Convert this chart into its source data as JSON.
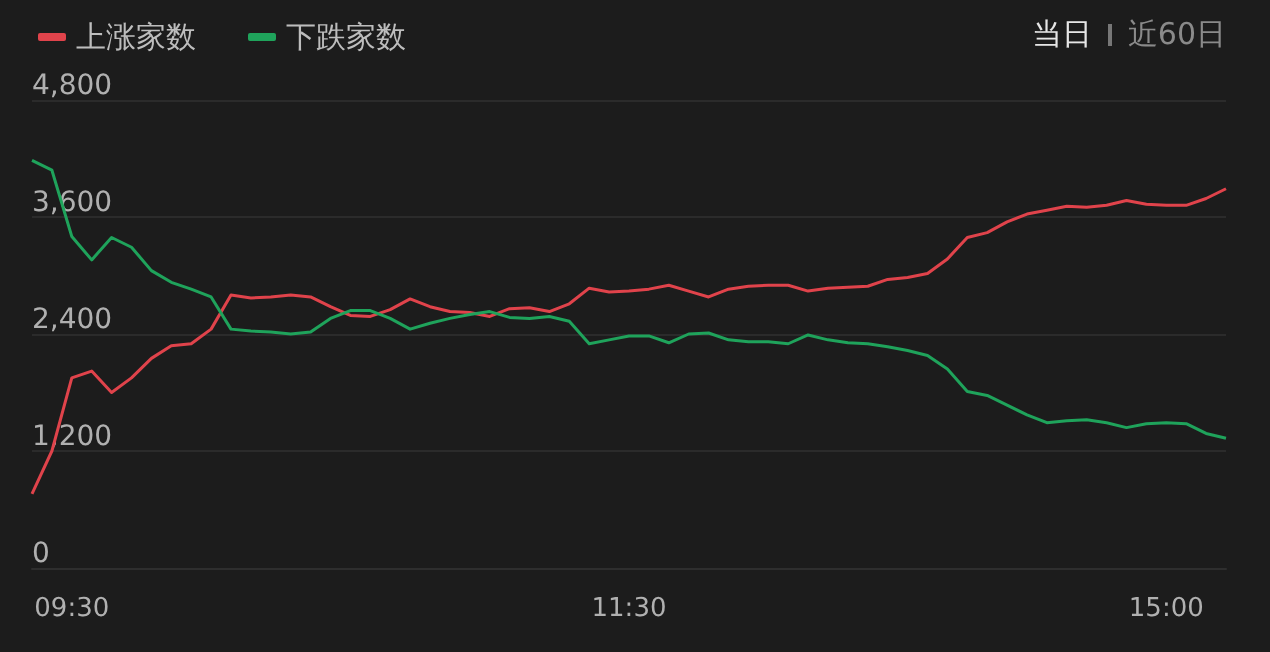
{
  "chart_data": {
    "type": "line",
    "categories": [
      null,
      null,
      "09:30",
      null,
      null,
      null,
      null,
      null,
      null,
      null,
      null,
      null,
      null,
      null,
      null,
      null,
      null,
      null,
      null,
      null,
      null,
      null,
      null,
      null,
      null,
      null,
      null,
      null,
      null,
      null,
      "11:30",
      null,
      null,
      null,
      null,
      null,
      null,
      null,
      null,
      null,
      null,
      null,
      null,
      null,
      null,
      null,
      null,
      null,
      null,
      null,
      null,
      null,
      null,
      null,
      null,
      null,
      null,
      "15:00",
      null,
      null,
      null
    ],
    "series": [
      {
        "name": "上涨家数",
        "color": "#e0434b",
        "values": [
          760,
          1200,
          1950,
          2020,
          1800,
          1950,
          2150,
          2280,
          2300,
          2450,
          2800,
          2770,
          2780,
          2800,
          2780,
          2680,
          2590,
          2580,
          2650,
          2760,
          2680,
          2630,
          2620,
          2580,
          2660,
          2670,
          2630,
          2710,
          2870,
          2830,
          2840,
          2860,
          2900,
          2840,
          2780,
          2860,
          2890,
          2900,
          2900,
          2840,
          2870,
          2880,
          2890,
          2960,
          2980,
          3020,
          3170,
          3390,
          3440,
          3550,
          3630,
          3670,
          3710,
          3700,
          3720,
          3770,
          3730,
          3720,
          3720,
          3790,
          3890
        ]
      },
      {
        "name": "下跌家数",
        "color": "#1fa35b",
        "values": [
          4180,
          4080,
          3400,
          3160,
          3390,
          3290,
          3050,
          2930,
          2860,
          2780,
          2450,
          2430,
          2420,
          2400,
          2420,
          2560,
          2640,
          2640,
          2560,
          2450,
          2510,
          2560,
          2600,
          2630,
          2570,
          2560,
          2580,
          2530,
          2300,
          2340,
          2380,
          2380,
          2310,
          2400,
          2410,
          2340,
          2320,
          2320,
          2300,
          2390,
          2340,
          2310,
          2300,
          2270,
          2230,
          2180,
          2040,
          1810,
          1770,
          1670,
          1570,
          1490,
          1510,
          1520,
          1490,
          1440,
          1480,
          1490,
          1480,
          1380,
          1330
        ]
      }
    ],
    "ylim": [
      0,
      4800
    ],
    "yticks": [
      0,
      {
        "value": 1200,
        "label": "1,200"
      },
      {
        "value": 2400,
        "label": "2,400"
      },
      {
        "value": 3600,
        "label": "3,600"
      },
      {
        "value": 4800,
        "label": "4,800"
      }
    ],
    "grid": "y",
    "legend": "top left",
    "marker": "none",
    "line_style": "solid",
    "annotations": [
      "当日",
      "近60日"
    ]
  }
}
